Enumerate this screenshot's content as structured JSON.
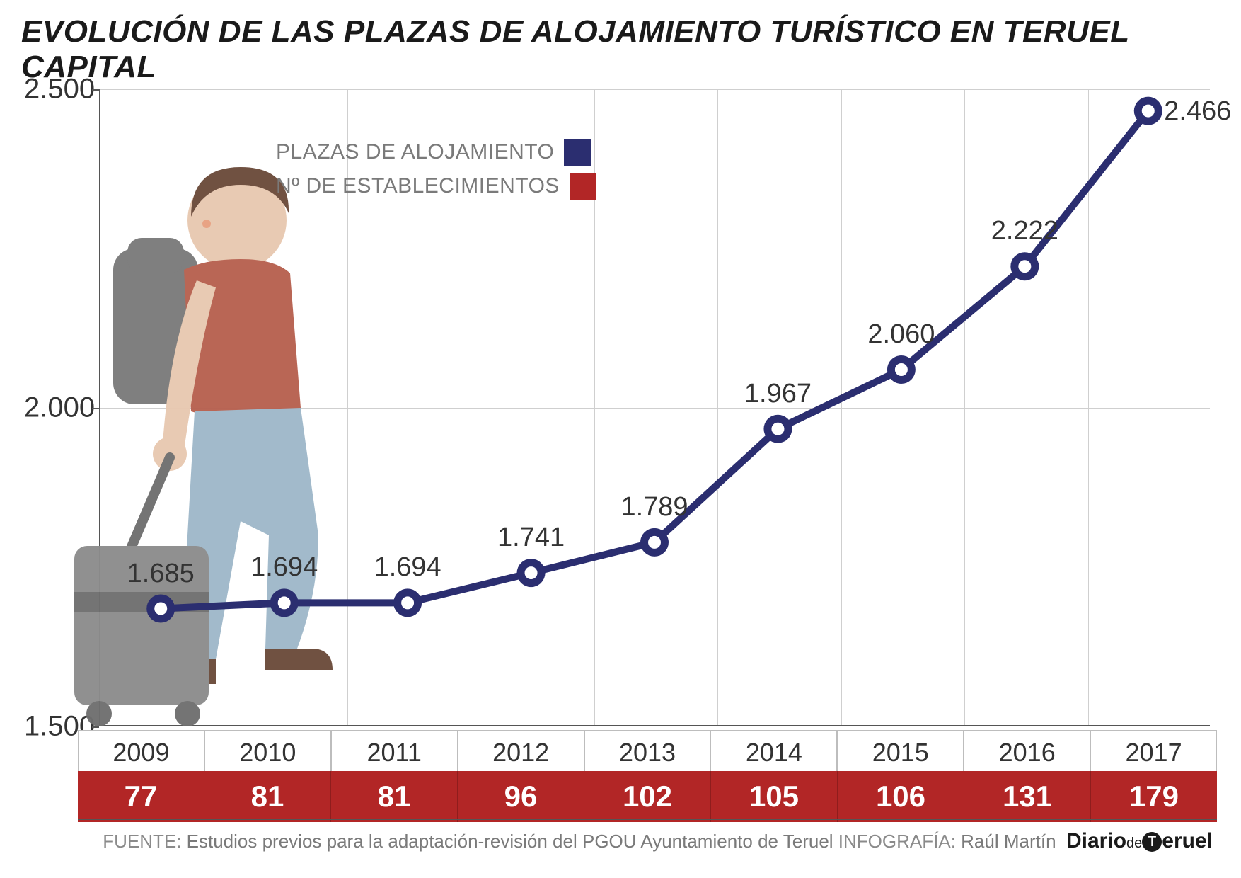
{
  "title": "EVOLUCIÓN DE LAS PLAZAS DE ALOJAMIENTO TURÍSTICO EN TERUEL CAPITAL",
  "chart": {
    "type": "line",
    "background_color": "#ffffff",
    "grid_color": "#cfcfcf",
    "axis_color": "#555555",
    "ylabel_fontsize": 40,
    "xlabel_fontsize": 36,
    "point_label_fontsize": 38,
    "ylim": [
      1500,
      2500
    ],
    "yticks": [
      1500,
      2000,
      2500
    ],
    "ytick_labels": [
      "1.500",
      "2.000",
      "2.500"
    ],
    "years": [
      "2009",
      "2010",
      "2011",
      "2012",
      "2013",
      "2014",
      "2015",
      "2016",
      "2017"
    ],
    "plazas": {
      "values": [
        1685,
        1694,
        1694,
        1741,
        1789,
        1967,
        2060,
        2222,
        2466
      ],
      "labels": [
        "1.685",
        "1.694",
        "1.694",
        "1.741",
        "1.789",
        "1.967",
        "2.060",
        "2.222",
        "2.466"
      ],
      "line_color": "#2b2e70",
      "line_width": 10,
      "marker_fill": "#2b2e70",
      "marker_inner": "#ffffff",
      "marker_radius": 20,
      "marker_inner_radius": 9
    },
    "establecimientos": {
      "values": [
        77,
        81,
        81,
        96,
        102,
        105,
        106,
        131,
        179
      ],
      "row_bg": "#b22626",
      "row_text": "#ffffff",
      "row_fontsize": 42
    }
  },
  "legend": {
    "items": [
      {
        "label": "PLAZAS DE ALOJAMIENTO",
        "color": "#2b2e70"
      },
      {
        "label": "Nº DE ESTABLECIMIENTOS",
        "color": "#b22626"
      }
    ],
    "fontsize": 30,
    "text_color": "#7a7a7a"
  },
  "illustration": {
    "skin": "#e8c8b0",
    "hair": "#6b4a3a",
    "shirt": "#b7604f",
    "pants": "#9fb8c9",
    "shoe": "#6b4a3a",
    "backpack": "#7a7a7a",
    "suitcase": "#8c8c8c",
    "suitcase_dark": "#6f6f6f"
  },
  "source": {
    "fuente_label": "FUENTE:",
    "fuente_text": "Estudios previos para la adaptación-revisión del PGOU Ayuntamiento de Teruel",
    "infografia_label": "INFOGRAFÍA:",
    "infografia_text": "Raúl Martín",
    "brand_pre": "Diario",
    "brand_de": "de",
    "brand_t": "T",
    "brand_post": "eruel"
  }
}
